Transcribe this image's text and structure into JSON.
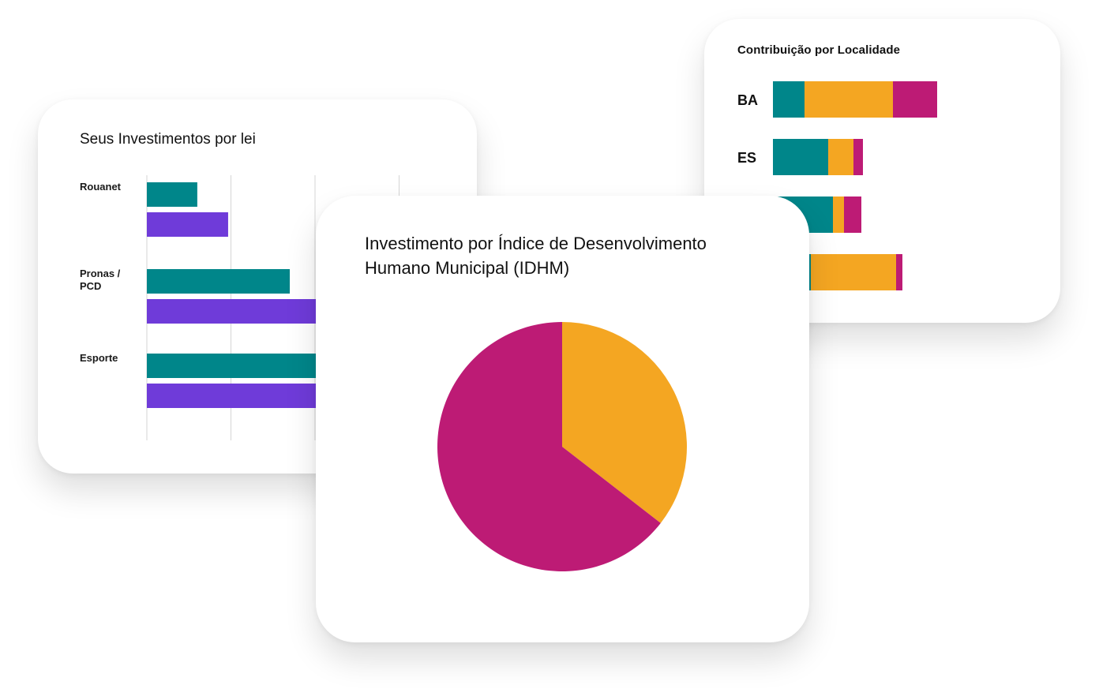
{
  "colors": {
    "teal": "#00868A",
    "purple": "#6F3BD9",
    "orange": "#F4A622",
    "magenta": "#BD1B75",
    "grid": "#d5d5d5"
  },
  "chart_data": [
    {
      "id": "laws",
      "type": "bar",
      "orientation": "horizontal",
      "title": "Seus Investimentos por lei",
      "categories": [
        {
          "lines": [
            "Rouanet"
          ]
        },
        {
          "lines": [
            "Pronas /",
            "PCD"
          ]
        },
        {
          "lines": [
            "Esporte"
          ]
        }
      ],
      "series": [
        {
          "color": "#00868A",
          "values": [
            18,
            51,
            140
          ]
        },
        {
          "color": "#6F3BD9",
          "values": [
            29,
            82,
            140
          ]
        }
      ],
      "xlim": [
        0,
        150
      ],
      "grid": true
    },
    {
      "id": "locality",
      "type": "bar",
      "orientation": "horizontal",
      "stacked": true,
      "title": "Contribuição por Localidade",
      "categories": [
        "BA",
        "ES",
        "",
        ""
      ],
      "series": [
        {
          "color": "#00868A",
          "values": [
            10,
            17.5,
            19,
            12
          ]
        },
        {
          "color": "#F4A622",
          "values": [
            28,
            8,
            3.5,
            27
          ]
        },
        {
          "color": "#BD1B75",
          "values": [
            14,
            3,
            5.5,
            2
          ]
        }
      ],
      "xlim": [
        0,
        100
      ]
    },
    {
      "id": "idhm",
      "type": "pie",
      "title": "Investimento por Índice de Desenvolvimento Humano Municipal (IDHM)",
      "slices": [
        {
          "value": 35.5,
          "color": "#F4A622"
        },
        {
          "value": 64.5,
          "color": "#BD1B75"
        }
      ]
    }
  ]
}
